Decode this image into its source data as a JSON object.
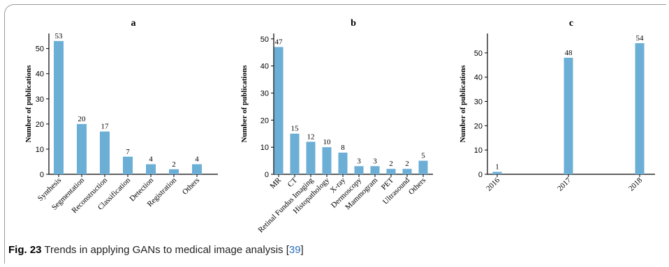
{
  "caption": {
    "fig_label": "Fig. 23",
    "text": "Trends in applying GANs to medical image analysis [",
    "ref": "39",
    "end": "]"
  },
  "colors": {
    "bar": "#6baed6"
  },
  "chart_data": [
    {
      "type": "bar",
      "title": "a",
      "ylabel": "Number of publications",
      "xlabel": "",
      "ylim": [
        0,
        56
      ],
      "yticks": [
        0,
        10,
        20,
        30,
        40,
        50
      ],
      "categories": [
        "Synthesis",
        "Segmentation",
        "Reconstruction",
        "Classification",
        "Detection",
        "Registration",
        "Others"
      ],
      "values": [
        53,
        20,
        17,
        7,
        4,
        2,
        4
      ],
      "grid": false
    },
    {
      "type": "bar",
      "title": "b",
      "ylabel": "Number of publications",
      "xlabel": "",
      "ylim": [
        0,
        52
      ],
      "yticks": [
        0,
        10,
        20,
        30,
        40,
        50
      ],
      "categories": [
        "MR",
        "CT",
        "Retinal Fundus Imaging",
        "Histopathology",
        "X-ray",
        "Dermoscopy",
        "Mammogram",
        "PET",
        "Ultrasound",
        "Others"
      ],
      "values": [
        47,
        15,
        12,
        10,
        8,
        3,
        3,
        2,
        2,
        5
      ],
      "grid": false
    },
    {
      "type": "bar",
      "title": "c",
      "ylabel": "Number of publications",
      "xlabel": "",
      "ylim": [
        0,
        58
      ],
      "yticks": [
        0,
        10,
        20,
        30,
        40,
        50
      ],
      "categories": [
        "2016",
        "2017",
        "2018"
      ],
      "values": [
        1,
        48,
        54
      ],
      "grid": false
    }
  ]
}
